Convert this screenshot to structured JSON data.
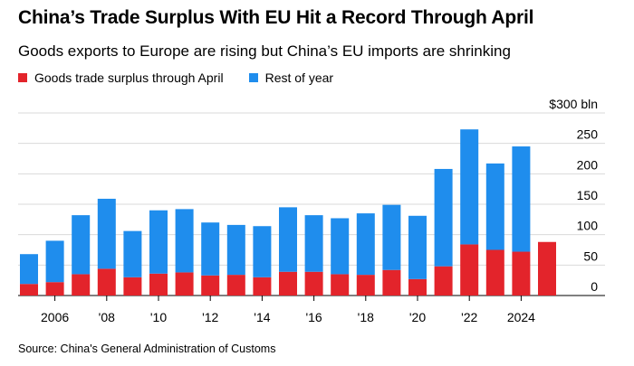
{
  "title": "China’s Trade Surplus With EU Hit a Record Through April",
  "subtitle": "Goods exports to Europe are rising but China’s EU imports are shrinking",
  "legend": [
    {
      "label": "Goods trade surplus through April",
      "color": "#e3242b"
    },
    {
      "label": "Rest of year",
      "color": "#1f8ded"
    }
  ],
  "source": "Source: China's General Administration of Customs",
  "chart_data": {
    "type": "bar",
    "stacked": true,
    "categories": [
      "2005",
      "2006",
      "2007",
      "2008",
      "2009",
      "2010",
      "2011",
      "2012",
      "2013",
      "2014",
      "2015",
      "2016",
      "2017",
      "2018",
      "2019",
      "2020",
      "2021",
      "2022",
      "2023",
      "2024",
      "2025"
    ],
    "series": [
      {
        "name": "Goods trade surplus through April",
        "color": "#e3242b",
        "values": [
          19,
          22,
          35,
          44,
          30,
          36,
          38,
          33,
          34,
          30,
          39,
          39,
          35,
          34,
          42,
          27,
          48,
          84,
          75,
          72,
          88
        ]
      },
      {
        "name": "Rest of year",
        "color": "#1f8ded",
        "values": [
          49,
          68,
          97,
          115,
          76,
          104,
          104,
          87,
          82,
          84,
          106,
          93,
          92,
          101,
          107,
          104,
          160,
          189,
          142,
          173,
          0
        ]
      }
    ],
    "x_tick_labels": [
      {
        "category": "2006",
        "label": "2006"
      },
      {
        "category": "2008",
        "label": "'08"
      },
      {
        "category": "2010",
        "label": "'10"
      },
      {
        "category": "2012",
        "label": "'12"
      },
      {
        "category": "2014",
        "label": "'14"
      },
      {
        "category": "2016",
        "label": "'16"
      },
      {
        "category": "2018",
        "label": "'18"
      },
      {
        "category": "2020",
        "label": "'20"
      },
      {
        "category": "2022",
        "label": "'22"
      },
      {
        "category": "2024",
        "label": "2024"
      }
    ],
    "y_ticks": [
      {
        "value": 0,
        "label": "0"
      },
      {
        "value": 50,
        "label": "50"
      },
      {
        "value": 100,
        "label": "100"
      },
      {
        "value": 150,
        "label": "150"
      },
      {
        "value": 200,
        "label": "200"
      },
      {
        "value": 250,
        "label": "250"
      },
      {
        "value": 300,
        "label": "$300 bln"
      }
    ],
    "ylim": [
      0,
      300
    ],
    "grid": true,
    "y_axis_side": "right",
    "legend_position": "top-left"
  }
}
